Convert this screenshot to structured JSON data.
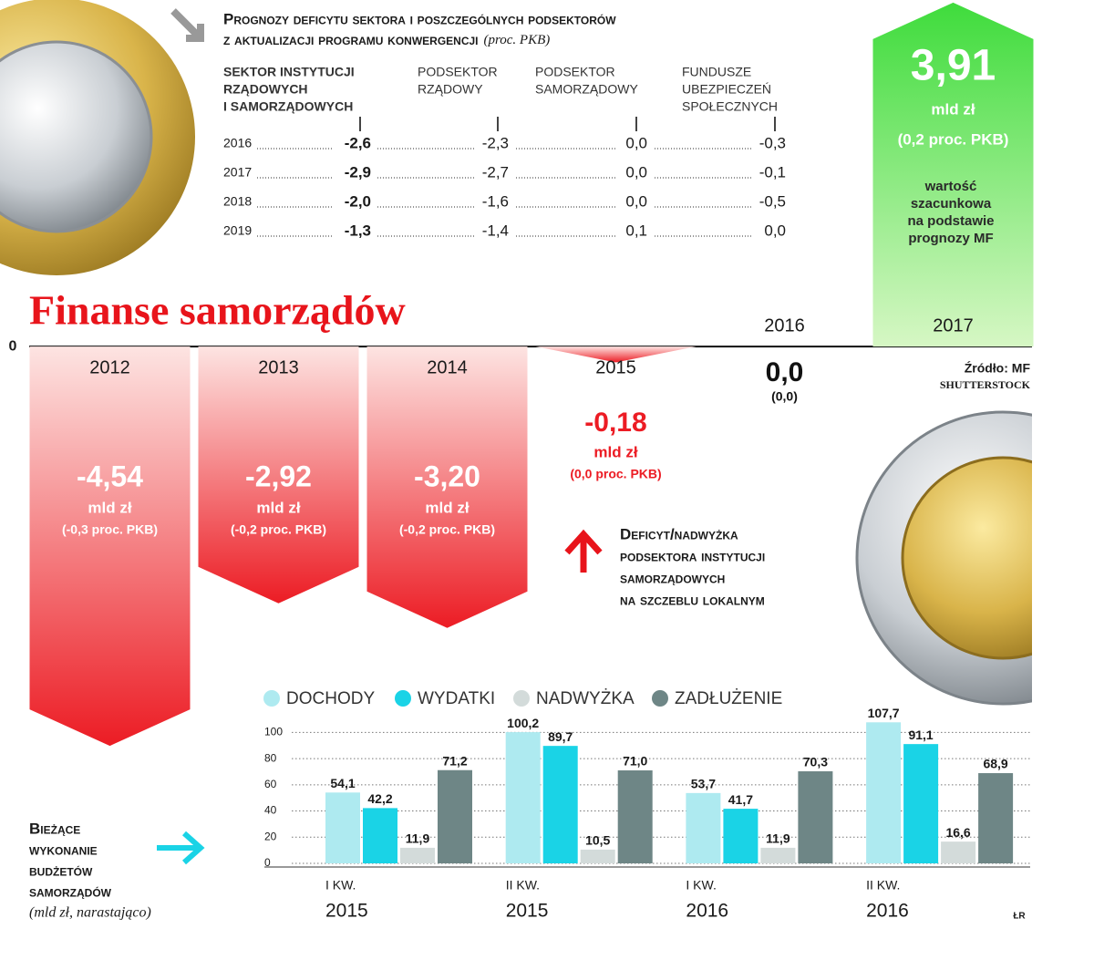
{
  "header": {
    "title_line1": "Prognozy deficytu sektora i poszczególnych podsektorów",
    "title_line2": "z aktualizacji programu konwergencji",
    "unit": "(proc. PKB)"
  },
  "table": {
    "columns": [
      [
        "SEKTOR INSTYTUCJI",
        "RZĄDOWYCH",
        "I SAMORZĄDOWYCH"
      ],
      [
        "PODSEKTOR",
        "RZĄDOWY"
      ],
      [
        "PODSEKTOR",
        "SAMORZĄDOWY"
      ],
      [
        "FUNDUSZE",
        "UBEZPIECZEŃ",
        "SPOŁECZNYCH"
      ]
    ],
    "rows": [
      [
        "2016",
        "-2,6",
        "-2,3",
        "0,0",
        "-0,3"
      ],
      [
        "2017",
        "-2,9",
        "-2,7",
        "0,0",
        "-0,1"
      ],
      [
        "2018",
        "-2,0",
        "-1,6",
        "0,0",
        "-0,5"
      ],
      [
        "2019",
        "-1,3",
        "-1,4",
        "0,1",
        "0,0"
      ]
    ]
  },
  "chart_data": [
    {
      "type": "arrow-bar",
      "title": "Finanse samorządów",
      "categories": [
        "2012",
        "2013",
        "2014",
        "2015",
        "2016",
        "2017"
      ],
      "values": [
        -4.54,
        -2.92,
        -3.2,
        -0.18,
        0,
        3.91
      ],
      "value_labels": [
        "-4,54",
        "-2,92",
        "-3,20",
        "-0,18",
        "0,0",
        "3,91"
      ],
      "unit": "mld zł",
      "pkb_labels": [
        "(-0,3 proc. PKB)",
        "(-0,2 proc. PKB)",
        "(-0,2 proc. PKB)",
        "(0,0 proc. PKB)",
        "(0,0)",
        "(0,2 proc. PKB)"
      ],
      "negative_color": "#ec1c24",
      "positive_color": "#3fdc3c",
      "ylim": [
        -4.7,
        3.94
      ],
      "yticks": [
        0
      ],
      "note": [
        "wartość",
        "szacunkowa",
        "na podstawie",
        "prognozy MF"
      ],
      "annotation": [
        "Deficyt/nadwyżka",
        "podsektora instytucji",
        "samorządowych",
        "na szczeblu lokalnym"
      ],
      "source": "Źródło: MF",
      "photo_credit": "SHUTTERSTOCK"
    },
    {
      "type": "bar",
      "categories": [
        "I KW.",
        "II KW.",
        "I KW.",
        "II KW."
      ],
      "category_years": [
        "2015",
        "2015",
        "2016",
        "2016"
      ],
      "series": [
        {
          "name": "DOCHODY",
          "color": "#aeeaf0",
          "values": [
            54.1,
            100.2,
            53.7,
            107.7
          ],
          "value_labels": [
            "54,1",
            "100,2",
            "53,7",
            "107,7"
          ]
        },
        {
          "name": "WYDATKI",
          "color": "#1ad3e6",
          "values": [
            42.2,
            89.7,
            41.7,
            91.1
          ],
          "value_labels": [
            "42,2",
            "89,7",
            "41,7",
            "91,1"
          ]
        },
        {
          "name": "NADWYŻKA",
          "color": "#d3dbda",
          "values": [
            11.9,
            10.5,
            11.9,
            16.6
          ],
          "value_labels": [
            "11,9",
            "10,5",
            "11,9",
            "16,6"
          ]
        },
        {
          "name": "ZADŁUŻENIE",
          "color": "#6e8686",
          "values": [
            71.2,
            71.0,
            70.3,
            68.9
          ],
          "value_labels": [
            "71,2",
            "71,0",
            "70,3",
            "68,9"
          ]
        }
      ],
      "ylim": [
        0,
        110
      ],
      "yticks": [
        0,
        20,
        40,
        60,
        80,
        100
      ],
      "grid": true,
      "legend": "top",
      "annotation": [
        "Bieżące",
        "wykonanie",
        "budżetów",
        "samorządów"
      ],
      "annotation_unit": "(mld zł, narastająco)"
    }
  ],
  "credit": "ŁR"
}
